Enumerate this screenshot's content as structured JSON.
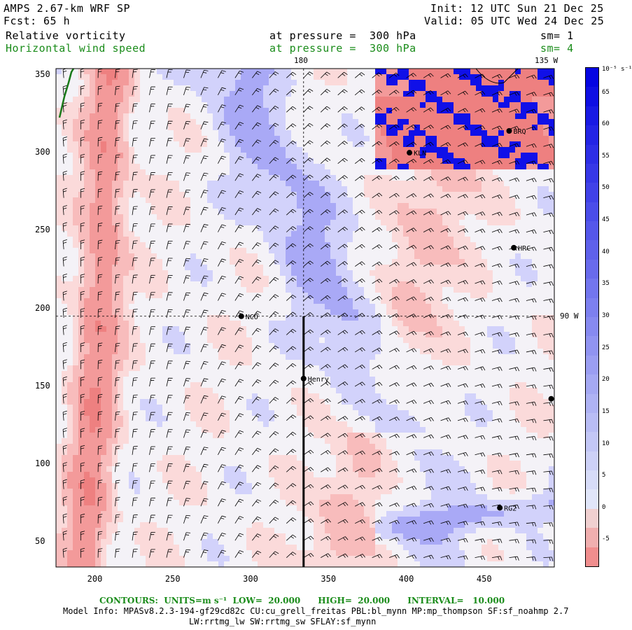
{
  "header": {
    "model": "AMPS 2.67-km WRF SP",
    "fcst_label": "Fcst:",
    "fcst_value": "65 h",
    "init": "Init: 12 UTC Sun 21 Dec 25",
    "valid": "Valid: 05 UTC Wed 24 Dec 25",
    "field1_name": "Relative vorticity",
    "field1_level": "at pressure =  300 hPa",
    "field1_sm": "sm= 1",
    "field2_name": "Horizontal wind speed",
    "field2_level": "at pressure =  300 hPa",
    "field2_sm": "sm= 4",
    "color_field1": "#000000",
    "color_field2": "#1a8c1a"
  },
  "map": {
    "lon_labels": {
      "top_180": "180",
      "top_135w": "135 W",
      "right_90w": "90 W"
    },
    "stations": [
      {
        "name": "KLN",
        "x": 402,
        "y": 300
      },
      {
        "name": "BRQ",
        "x": 466,
        "y": 314
      },
      {
        "name": "HRC",
        "x": 469,
        "y": 239
      },
      {
        "name": "NCO",
        "x": 294,
        "y": 195
      },
      {
        "name": "Henry",
        "x": 334,
        "y": 155
      },
      {
        "name": "",
        "x": 493,
        "y": 142
      },
      {
        "name": "RG2",
        "x": 460,
        "y": 72
      }
    ],
    "colors": {
      "positive": "#f28080",
      "negative": "#6f6ff0",
      "strong_negative": "#0000e0",
      "coast": "#1a7a1a"
    }
  },
  "axes": {
    "x_ticks": [
      "200",
      "250",
      "300",
      "350",
      "400",
      "450"
    ],
    "x_values": [
      200,
      250,
      300,
      350,
      400,
      450
    ],
    "y_ticks": [
      "350",
      "300",
      "250",
      "200",
      "150",
      "100",
      "50"
    ],
    "y_values": [
      350,
      300,
      250,
      200,
      150,
      100,
      50
    ],
    "xlim": [
      175,
      495
    ],
    "ylim": [
      34,
      354
    ]
  },
  "colorbar": {
    "units": "10⁻⁵ s⁻¹",
    "labels": [
      "65",
      "60",
      "55",
      "50",
      "45",
      "40",
      "35",
      "30",
      "25",
      "20",
      "15",
      "10",
      "5",
      "0",
      "-5"
    ],
    "values": [
      65,
      60,
      55,
      50,
      45,
      40,
      35,
      30,
      25,
      20,
      15,
      10,
      5,
      0,
      -5
    ],
    "range": [
      -9,
      69
    ]
  },
  "footer": {
    "contours": "CONTOURS:  UNITS=m s⁻¹  LOW=  20.000      HIGH=  20.000      INTERVAL=   10.000",
    "model_info": "Model Info: MPASv8.2.3-194-gf29cd82c CU:cu_grell_freitas PBL:bl_mynn MP:mp_thompson SF:sf_noahmp 2.7",
    "model_info2": "LW:rrtmg_lw SW:rrtmg_sw SFLAY:sf_mynn"
  }
}
